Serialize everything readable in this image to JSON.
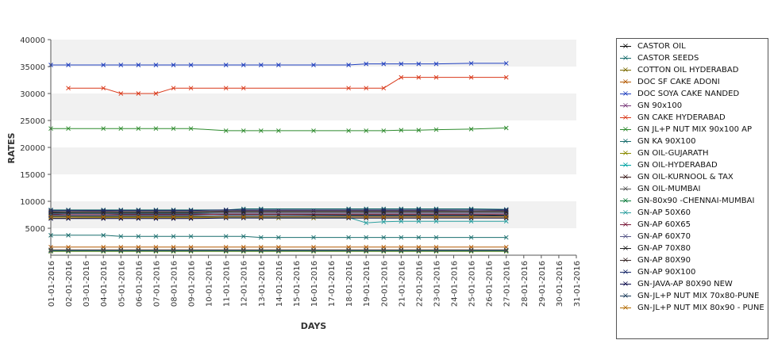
{
  "chart_data": {
    "type": "line",
    "title": "",
    "xlabel": "DAYS",
    "ylabel": "RATES",
    "ylim": [
      0,
      40000
    ],
    "yticks": [
      5000,
      10000,
      15000,
      20000,
      25000,
      30000,
      35000,
      40000
    ],
    "grid": "horizontal alternating bands",
    "legend_position": "right",
    "categories": [
      "01-01-2016",
      "02-01-2016",
      "03-01-2016",
      "04-01-2016",
      "05-01-2016",
      "06-01-2016",
      "07-01-2016",
      "08-01-2016",
      "09-01-2016",
      "10-01-2016",
      "11-01-2016",
      "12-01-2016",
      "13-01-2016",
      "14-01-2016",
      "15-01-2016",
      "16-01-2016",
      "17-01-2016",
      "18-01-2016",
      "19-01-2016",
      "20-01-2016",
      "21-01-2016",
      "22-01-2016",
      "23-01-2016",
      "24-01-2016",
      "25-01-2016",
      "26-01-2016",
      "27-01-2016",
      "28-01-2016",
      "29-01-2016",
      "30-01-2016",
      "31-01-2016"
    ],
    "series": [
      {
        "name": "CASTOR OIL",
        "color": "#111111",
        "x": [
          1,
          2,
          4,
          5,
          6,
          7,
          8,
          9,
          11,
          12,
          13,
          14,
          16,
          18,
          19,
          20,
          21,
          22,
          23,
          25,
          27
        ],
        "values": [
          7600,
          7700,
          7700,
          7650,
          7600,
          7600,
          7600,
          7600,
          7550,
          7550,
          7550,
          7550,
          7500,
          7450,
          7450,
          7450,
          7450,
          7450,
          7450,
          7450,
          7400
        ]
      },
      {
        "name": "CASTOR SEEDS",
        "color": "#1a6e6e",
        "x": [
          1,
          2,
          4,
          5,
          6,
          7,
          8,
          9,
          11,
          12,
          13,
          14,
          16,
          18,
          19,
          20,
          21,
          22,
          23,
          25,
          27
        ],
        "values": [
          3700,
          3700,
          3700,
          3500,
          3500,
          3500,
          3500,
          3500,
          3500,
          3500,
          3300,
          3300,
          3300,
          3300,
          3300,
          3300,
          3300,
          3300,
          3300,
          3300,
          3300
        ]
      },
      {
        "name": "COTTON OIL HYDERABAD",
        "color": "#7a6a00",
        "x": [
          1,
          2,
          4,
          5,
          6,
          7,
          8,
          9,
          11,
          12,
          13,
          14,
          16,
          18,
          19,
          20,
          21,
          22,
          23,
          25,
          27
        ],
        "values": [
          6900,
          6900,
          6950,
          6950,
          6950,
          6950,
          6950,
          6950,
          6950,
          6950,
          6900,
          6900,
          6900,
          6900,
          6900,
          6900,
          6900,
          6900,
          6900,
          6900,
          6900
        ]
      },
      {
        "name": "DOC SF CAKE ADONI",
        "color": "#b35900",
        "x": [
          1,
          2,
          4,
          5,
          6,
          7,
          8,
          9,
          11,
          12,
          13,
          14,
          16,
          18,
          19,
          20,
          21,
          22,
          23,
          25,
          27
        ],
        "values": [
          1500,
          1500,
          1500,
          1500,
          1500,
          1500,
          1500,
          1500,
          1500,
          1500,
          1500,
          1500,
          1500,
          1500,
          1500,
          1500,
          1500,
          1500,
          1500,
          1500,
          1500
        ]
      },
      {
        "name": "DOC SOYA CAKE NANDED",
        "color": "#1f3fbf",
        "x": [
          1,
          2,
          4,
          5,
          6,
          7,
          8,
          9,
          11,
          12,
          13,
          14,
          16,
          18,
          19,
          20,
          21,
          22,
          23,
          25,
          27
        ],
        "values": [
          35300,
          35300,
          35300,
          35300,
          35300,
          35300,
          35300,
          35300,
          35300,
          35300,
          35300,
          35300,
          35300,
          35300,
          35500,
          35500,
          35500,
          35500,
          35500,
          35600,
          35600
        ]
      },
      {
        "name": "GN 90x100",
        "color": "#7a3a7a",
        "x": [
          1,
          2,
          4,
          5,
          6,
          7,
          8,
          9,
          11,
          12,
          13,
          14,
          16,
          18,
          19,
          20,
          21,
          22,
          23,
          25,
          27
        ],
        "values": [
          8000,
          8100,
          8200,
          8100,
          8100,
          8100,
          8100,
          8100,
          8200,
          8300,
          8300,
          8300,
          8300,
          8300,
          8300,
          8300,
          8300,
          8300,
          8300,
          8400,
          8300
        ]
      },
      {
        "name": "GN CAKE HYDERABAD",
        "color": "#d9391a",
        "x": [
          2,
          4,
          5,
          6,
          7,
          8,
          9,
          11,
          12,
          18,
          19,
          20,
          21,
          22,
          23,
          25,
          27
        ],
        "values": [
          31000,
          31000,
          30000,
          30000,
          30000,
          31000,
          31000,
          31000,
          31000,
          31000,
          31000,
          31000,
          33000,
          33000,
          33000,
          33000,
          33000
        ]
      },
      {
        "name": "GN JL+P NUT MIX 90x100 AP",
        "color": "#2e8b2e",
        "x": [
          1,
          2,
          4,
          5,
          6,
          7,
          8,
          9,
          11,
          12,
          13,
          14,
          16,
          18,
          19,
          20,
          21,
          22,
          23,
          25,
          27
        ],
        "values": [
          23500,
          23500,
          23500,
          23500,
          23500,
          23500,
          23500,
          23500,
          23100,
          23100,
          23100,
          23100,
          23100,
          23100,
          23100,
          23100,
          23200,
          23200,
          23300,
          23400,
          23600
        ]
      },
      {
        "name": "GN KA 90X100",
        "color": "#1a6e6e",
        "x": [
          1,
          2,
          4,
          5,
          6,
          7,
          8,
          9,
          11,
          12,
          13,
          18,
          19,
          20,
          21,
          22,
          23,
          25,
          27
        ],
        "values": [
          8400,
          8400,
          8400,
          8400,
          8400,
          8400,
          8400,
          8400,
          8400,
          8600,
          8600,
          8600,
          8600,
          8600,
          8600,
          8600,
          8600,
          8600,
          8500
        ]
      },
      {
        "name": "GN OIL-GUJARATH",
        "color": "#8a8a00",
        "x": [
          1,
          2,
          4,
          5,
          6,
          7,
          8,
          9,
          11,
          12,
          13,
          14,
          16,
          18,
          19,
          20,
          21,
          22,
          23,
          25,
          27
        ],
        "values": [
          700,
          700,
          700,
          700,
          700,
          700,
          700,
          700,
          700,
          700,
          700,
          700,
          700,
          700,
          700,
          700,
          700,
          700,
          700,
          700,
          700
        ]
      },
      {
        "name": "GN OIL-HYDERABAD",
        "color": "#00a3a3",
        "x": [
          1,
          2,
          4,
          5,
          6,
          7,
          8,
          9,
          11,
          12,
          13,
          14,
          16,
          18,
          19,
          20,
          21,
          22,
          23,
          25,
          27
        ],
        "values": [
          800,
          800,
          800,
          800,
          800,
          800,
          800,
          800,
          800,
          800,
          800,
          800,
          800,
          800,
          800,
          800,
          800,
          800,
          800,
          800,
          800
        ]
      },
      {
        "name": "GN OIL-KURNOOL & TAX",
        "color": "#3a1a1a",
        "x": [
          1,
          2,
          4,
          5,
          6,
          7,
          8,
          9,
          11,
          12,
          13,
          14,
          16,
          18,
          19,
          20,
          21,
          22,
          23,
          25,
          27
        ],
        "values": [
          900,
          900,
          900,
          900,
          900,
          900,
          900,
          900,
          900,
          900,
          900,
          900,
          900,
          900,
          900,
          900,
          900,
          900,
          900,
          900,
          900
        ]
      },
      {
        "name": "GN OIL-MUMBAI",
        "color": "#555555",
        "x": [
          1,
          2,
          4,
          5,
          6,
          7,
          8,
          9,
          11,
          12,
          13,
          14,
          16,
          18,
          19,
          20,
          21,
          22,
          23,
          25,
          27
        ],
        "values": [
          1000,
          1000,
          1000,
          1000,
          1000,
          1000,
          1000,
          1000,
          1000,
          1000,
          1000,
          1000,
          1000,
          1000,
          1000,
          1000,
          1000,
          1000,
          1000,
          1000,
          1000
        ]
      },
      {
        "name": "GN-80x90 -CHENNAI-MUMBAI",
        "color": "#0a7a3a",
        "x": [
          1,
          2,
          4,
          5,
          6,
          7,
          8,
          9,
          11,
          12,
          13,
          18,
          19,
          20,
          21,
          22,
          23,
          25,
          27
        ],
        "values": [
          7800,
          7800,
          7800,
          7800,
          7800,
          7800,
          7800,
          7800,
          7800,
          7800,
          7800,
          7800,
          7800,
          7800,
          7800,
          7800,
          7800,
          7800,
          7800
        ]
      },
      {
        "name": "GN-AP 50X60",
        "color": "#2ea0a0",
        "x": [
          1,
          2,
          4,
          5,
          6,
          7,
          8,
          9,
          11,
          12,
          13,
          18,
          19,
          20,
          21,
          22,
          23,
          25,
          27
        ],
        "values": [
          7200,
          7200,
          7200,
          7200,
          7200,
          7200,
          7200,
          7200,
          7000,
          7000,
          7000,
          7000,
          6000,
          6200,
          6300,
          6300,
          6300,
          6300,
          6300
        ]
      },
      {
        "name": "GN-AP 60X65",
        "color": "#7a1a3a",
        "x": [
          1,
          2,
          4,
          5,
          6,
          7,
          8,
          9,
          11,
          12,
          13,
          18,
          19,
          20,
          21,
          22,
          23,
          25,
          27
        ],
        "values": [
          7500,
          7500,
          7500,
          7500,
          7500,
          7500,
          7500,
          7500,
          7600,
          7600,
          7600,
          7600,
          7600,
          7600,
          7600,
          7600,
          7600,
          7600,
          7600
        ]
      },
      {
        "name": "GN-AP 60X70",
        "color": "#5a5a8a",
        "x": [
          1,
          2,
          4,
          5,
          6,
          7,
          8,
          9,
          11,
          12,
          13,
          18,
          19,
          20,
          21,
          22,
          23,
          25,
          27
        ],
        "values": [
          7700,
          7700,
          7700,
          7700,
          7700,
          7700,
          7700,
          7700,
          7800,
          7800,
          7800,
          7800,
          7800,
          7800,
          7800,
          7800,
          7800,
          7800,
          7800
        ]
      },
      {
        "name": "GN-AP 70X80",
        "color": "#222222",
        "x": [
          1,
          2,
          4,
          5,
          6,
          7,
          8,
          9,
          11,
          12,
          13,
          18,
          19,
          20,
          21,
          22,
          23,
          25,
          27
        ],
        "values": [
          7900,
          7900,
          7900,
          7900,
          7900,
          7900,
          7900,
          7900,
          8000,
          8000,
          8000,
          8000,
          8000,
          8000,
          8000,
          8000,
          8000,
          8000,
          8000
        ]
      },
      {
        "name": "GN-AP 80X90",
        "color": "#3a2a2a",
        "x": [
          1,
          2,
          4,
          5,
          6,
          7,
          8,
          9,
          11,
          12,
          13,
          18,
          19,
          20,
          21,
          22,
          23,
          25,
          27
        ],
        "values": [
          8100,
          8100,
          8100,
          8100,
          8100,
          8100,
          8100,
          8100,
          8200,
          8200,
          8200,
          8200,
          8200,
          8200,
          8200,
          8200,
          8200,
          8200,
          8200
        ]
      },
      {
        "name": "GN-AP 90X100",
        "color": "#1a2a6a",
        "x": [
          1,
          2,
          4,
          5,
          6,
          7,
          8,
          9,
          11,
          12,
          13,
          18,
          19,
          20,
          21,
          22,
          23,
          25,
          27
        ],
        "values": [
          8300,
          8300,
          8300,
          8300,
          8300,
          8300,
          8300,
          8300,
          8400,
          8400,
          8400,
          8400,
          8400,
          8400,
          8400,
          8400,
          8400,
          8400,
          8400
        ]
      },
      {
        "name": "GN-JAVA-AP 80X90 NEW",
        "color": "#0a0a4a",
        "x": [
          1,
          2,
          4,
          5,
          6,
          7,
          8,
          9,
          11,
          12,
          13,
          18,
          19,
          20,
          21,
          22,
          23,
          25,
          27
        ],
        "values": [
          6800,
          6800,
          6800,
          6800,
          6800,
          6800,
          6800,
          6800,
          6900,
          6900,
          6900,
          6900,
          6900,
          6900,
          6900,
          6900,
          6900,
          6900,
          6900
        ]
      },
      {
        "name": "GN-JL+P NUT MIX 70x80-PUNE",
        "color": "#1a3a5a",
        "x": [
          1,
          2,
          4,
          5,
          6,
          7,
          8,
          9,
          11,
          12,
          13,
          18,
          19,
          20,
          21,
          22,
          23,
          25,
          27
        ],
        "values": [
          7300,
          7300,
          7300,
          7300,
          7300,
          7300,
          7300,
          7300,
          7300,
          7300,
          7300,
          7300,
          7300,
          7300,
          7300,
          7300,
          7300,
          7300,
          7300
        ]
      },
      {
        "name": "GN-JL+P NUT MIX 80x90 - PUNE",
        "color": "#b36b00",
        "x": [
          1,
          2,
          4,
          5,
          6,
          7,
          8,
          9,
          11,
          12,
          13,
          18,
          19,
          20,
          21,
          22,
          23,
          25,
          27
        ],
        "values": [
          7100,
          7100,
          7100,
          7100,
          7100,
          7100,
          7100,
          7100,
          7100,
          7100,
          7100,
          7100,
          7100,
          7100,
          7100,
          7100,
          7100,
          7100,
          7100
        ]
      }
    ]
  }
}
